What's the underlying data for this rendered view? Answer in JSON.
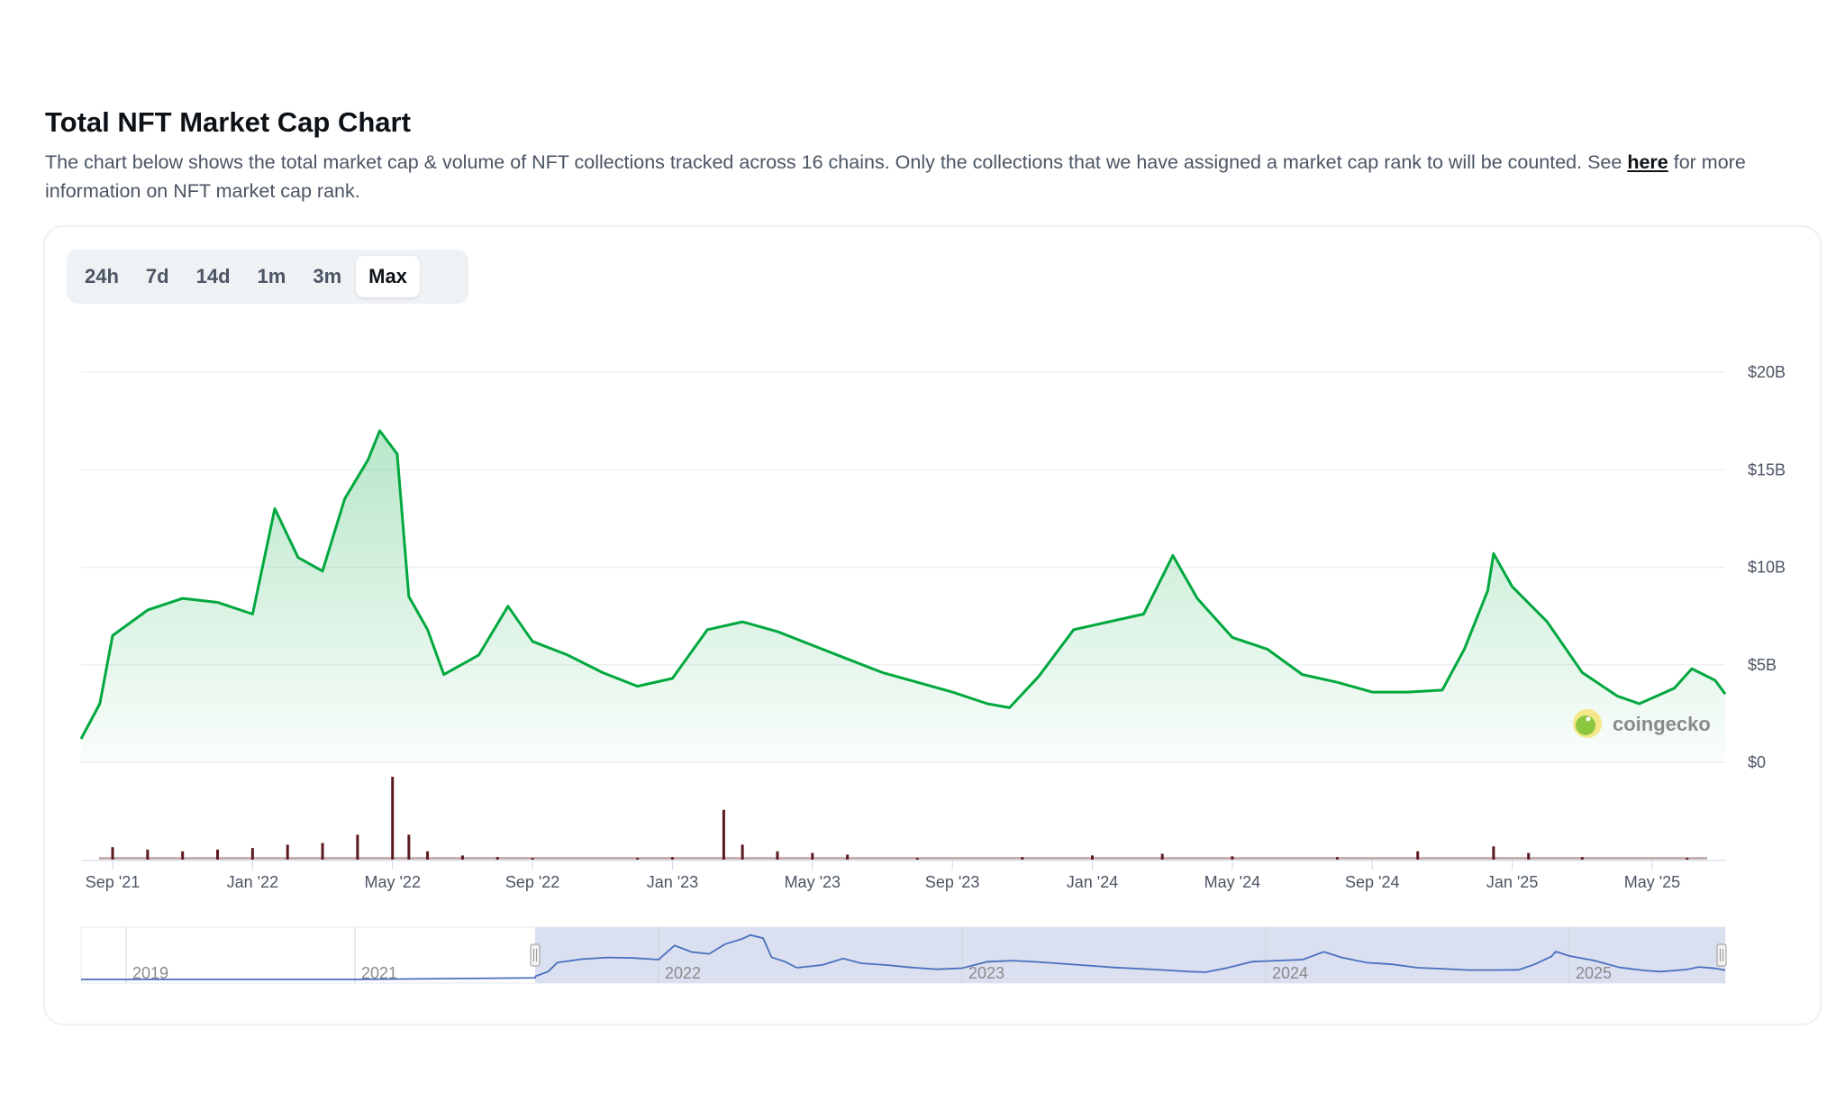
{
  "header": {
    "title": "Total NFT Market Cap Chart",
    "description": "The chart below shows the total market cap & volume of NFT collections tracked across 16 chains. Only the collections that we have assigned a market cap rank to will be counted. See ",
    "link_text": "here",
    "description_end": " for more information on NFT market cap rank."
  },
  "tabs": [
    {
      "label": "24h",
      "active": false
    },
    {
      "label": "7d",
      "active": false
    },
    {
      "label": "14d",
      "active": false
    },
    {
      "label": "1m",
      "active": false
    },
    {
      "label": "3m",
      "active": false
    },
    {
      "label": "Max",
      "active": true
    }
  ],
  "watermark": "coingecko",
  "colors": {
    "line": "#00a83e",
    "volume": "#5c1a1f",
    "navigator_line": "#4a6fbf",
    "navigator_mask": "#dae0ef"
  },
  "chart_data": {
    "type": "area",
    "yaxis": {
      "ticks": [
        "$0",
        "$5B",
        "$10B",
        "$15B",
        "$20B"
      ],
      "tick_values": [
        0,
        5,
        10,
        15,
        20
      ],
      "ylim": [
        0,
        20
      ],
      "unit": "USD billions",
      "position": "right"
    },
    "xaxis": {
      "ticks": [
        "Sep '21",
        "Jan '22",
        "May '22",
        "Sep '22",
        "Jan '23",
        "May '23",
        "Sep '23",
        "Jan '24",
        "May '24",
        "Sep '24",
        "Jan '25",
        "May '25"
      ]
    },
    "grid": true,
    "series": [
      {
        "type": "area",
        "points": [
          [
            "2021-08-05",
            1.2
          ],
          [
            "2021-08-20",
            3.0
          ],
          [
            "2021-09-01",
            6.5
          ],
          [
            "2021-10-01",
            7.8
          ],
          [
            "2021-11-01",
            8.4
          ],
          [
            "2021-12-01",
            8.2
          ],
          [
            "2022-01-01",
            7.6
          ],
          [
            "2022-01-20",
            13.0
          ],
          [
            "2022-02-10",
            10.5
          ],
          [
            "2022-03-01",
            9.8
          ],
          [
            "2022-03-20",
            13.5
          ],
          [
            "2022-04-10",
            15.5
          ],
          [
            "2022-04-20",
            17.0
          ],
          [
            "2022-05-05",
            15.8
          ],
          [
            "2022-05-15",
            8.5
          ],
          [
            "2022-06-01",
            6.8
          ],
          [
            "2022-06-15",
            4.5
          ],
          [
            "2022-07-15",
            5.5
          ],
          [
            "2022-08-10",
            8.0
          ],
          [
            "2022-09-01",
            6.2
          ],
          [
            "2022-10-01",
            5.5
          ],
          [
            "2022-11-01",
            4.6
          ],
          [
            "2022-12-01",
            3.9
          ],
          [
            "2023-01-01",
            4.3
          ],
          [
            "2023-02-01",
            6.8
          ],
          [
            "2023-03-01",
            7.2
          ],
          [
            "2023-04-01",
            6.7
          ],
          [
            "2023-05-01",
            6.0
          ],
          [
            "2023-06-01",
            5.3
          ],
          [
            "2023-07-01",
            4.6
          ],
          [
            "2023-08-01",
            4.1
          ],
          [
            "2023-09-01",
            3.6
          ],
          [
            "2023-10-01",
            3.0
          ],
          [
            "2023-10-20",
            2.8
          ],
          [
            "2023-11-15",
            4.4
          ],
          [
            "2023-12-15",
            6.8
          ],
          [
            "2024-01-15",
            7.2
          ],
          [
            "2024-02-15",
            7.6
          ],
          [
            "2024-03-10",
            10.6
          ],
          [
            "2024-04-01",
            8.4
          ],
          [
            "2024-05-01",
            6.4
          ],
          [
            "2024-06-01",
            5.8
          ],
          [
            "2024-07-01",
            4.5
          ],
          [
            "2024-08-01",
            4.1
          ],
          [
            "2024-09-01",
            3.6
          ],
          [
            "2024-10-01",
            3.6
          ],
          [
            "2024-11-01",
            3.7
          ],
          [
            "2024-11-20",
            5.8
          ],
          [
            "2024-12-10",
            8.8
          ],
          [
            "2024-12-15",
            10.7
          ],
          [
            "2025-01-01",
            9.0
          ],
          [
            "2025-02-01",
            7.2
          ],
          [
            "2025-03-01",
            4.6
          ],
          [
            "2025-04-01",
            3.4
          ],
          [
            "2025-04-20",
            3.0
          ],
          [
            "2025-05-20",
            3.8
          ],
          [
            "2025-06-05",
            4.8
          ],
          [
            "2025-06-25",
            4.2
          ],
          [
            "2025-07-10",
            3.5
          ]
        ]
      },
      {
        "type": "volume",
        "points": [
          [
            "2021-09-01",
            0.15
          ],
          [
            "2021-10-01",
            0.12
          ],
          [
            "2021-11-01",
            0.1
          ],
          [
            "2021-12-01",
            0.12
          ],
          [
            "2022-01-01",
            0.14
          ],
          [
            "2022-02-01",
            0.18
          ],
          [
            "2022-03-01",
            0.2
          ],
          [
            "2022-04-01",
            0.3
          ],
          [
            "2022-05-01",
            1.0
          ],
          [
            "2022-05-15",
            0.3
          ],
          [
            "2022-06-01",
            0.1
          ],
          [
            "2022-07-01",
            0.05
          ],
          [
            "2022-08-01",
            0.03
          ],
          [
            "2022-09-01",
            0.02
          ],
          [
            "2022-12-01",
            0.02
          ],
          [
            "2023-01-01",
            0.03
          ],
          [
            "2023-02-15",
            0.6
          ],
          [
            "2023-03-01",
            0.18
          ],
          [
            "2023-04-01",
            0.1
          ],
          [
            "2023-05-01",
            0.08
          ],
          [
            "2023-06-01",
            0.06
          ],
          [
            "2023-08-01",
            0.02
          ],
          [
            "2023-11-01",
            0.03
          ],
          [
            "2024-01-01",
            0.05
          ],
          [
            "2024-03-01",
            0.07
          ],
          [
            "2024-05-01",
            0.04
          ],
          [
            "2024-08-01",
            0.03
          ],
          [
            "2024-10-10",
            0.1
          ],
          [
            "2024-12-15",
            0.16
          ],
          [
            "2025-01-15",
            0.08
          ],
          [
            "2025-03-01",
            0.03
          ],
          [
            "2025-06-01",
            0.02
          ]
        ]
      }
    ],
    "navigator": {
      "labels": [
        "2019",
        "2021",
        "2022",
        "2023",
        "2024",
        "2025"
      ],
      "selected_range": [
        "2021-08",
        "2025-07"
      ]
    }
  }
}
